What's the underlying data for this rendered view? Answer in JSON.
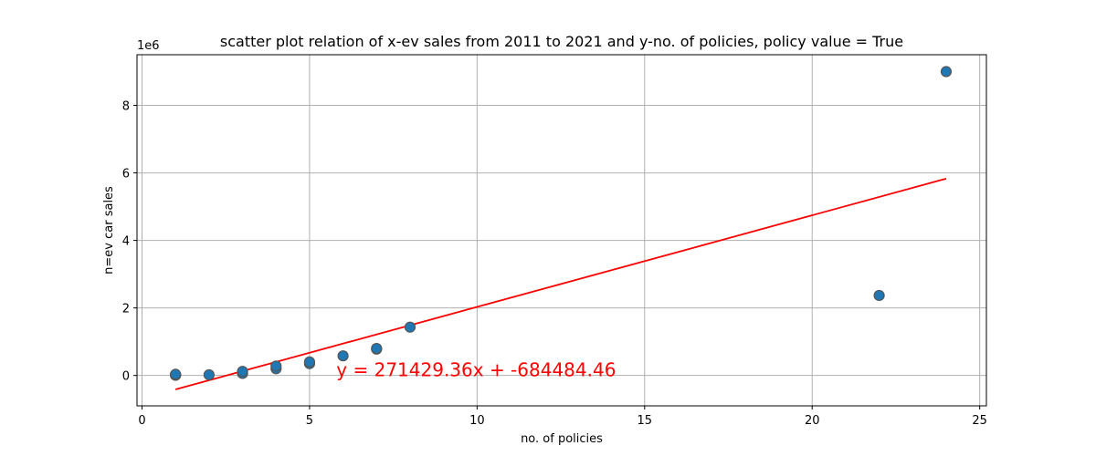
{
  "chart_data": {
    "type": "scatter",
    "title": "scatter plot relation of x-ev sales from 2011 to 2021 and y-no. of policies, policy value = True",
    "xlabel": "no. of policies",
    "ylabel": "n=ev car sales",
    "y_offset_text": "1e6",
    "x_ticks": [
      0,
      5,
      10,
      15,
      20,
      25
    ],
    "y_ticks": [
      0,
      2,
      4,
      6,
      8
    ],
    "xlim": [
      -0.15,
      25.2
    ],
    "ylim_scaled": [
      -0.9,
      9.5
    ],
    "y_scale_factor": 1000000,
    "grid": true,
    "points": [
      {
        "x": 1,
        "y": 5000
      },
      {
        "x": 1,
        "y": 15000
      },
      {
        "x": 1,
        "y": 25000
      },
      {
        "x": 1,
        "y": 35000
      },
      {
        "x": 2,
        "y": 20000
      },
      {
        "x": 3,
        "y": 60000
      },
      {
        "x": 3,
        "y": 120000
      },
      {
        "x": 4,
        "y": 200000
      },
      {
        "x": 4,
        "y": 280000
      },
      {
        "x": 5,
        "y": 350000
      },
      {
        "x": 5,
        "y": 400000
      },
      {
        "x": 6,
        "y": 580000
      },
      {
        "x": 7,
        "y": 780000
      },
      {
        "x": 7,
        "y": 800000
      },
      {
        "x": 8,
        "y": 1430000
      },
      {
        "x": 22,
        "y": 2370000
      },
      {
        "x": 24,
        "y": 9000000
      }
    ],
    "point_color": "#1f77b4",
    "trendline": {
      "slope": 271429.36,
      "intercept": -684484.46,
      "x_range": [
        1,
        24
      ],
      "color": "#ff0000",
      "label": "y = 271429.36x + -684484.46",
      "label_anchor": {
        "x": 5.8,
        "y": 0
      }
    }
  }
}
